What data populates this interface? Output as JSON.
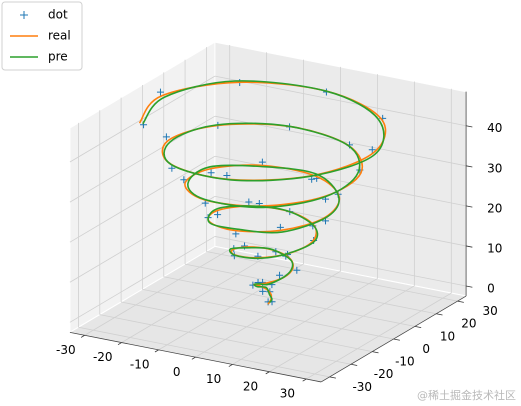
{
  "chart_data": {
    "type": "line3d",
    "legend": "upper left",
    "grid": true,
    "panes": true,
    "xlim": [
      -34,
      34
    ],
    "ylim": [
      -34,
      34
    ],
    "zlim": [
      -2.5,
      48.5
    ],
    "xticks": [
      -30,
      -20,
      -10,
      0,
      10,
      20,
      30
    ],
    "yticks": [
      -30,
      -20,
      -10,
      0,
      10,
      20,
      30
    ],
    "zticks": [
      0,
      10,
      20,
      30,
      40
    ],
    "series": [
      {
        "name": "dot",
        "kind": "scatter",
        "marker": "+",
        "color": "#1f77b4",
        "x": [
          0.8,
          0.2,
          -0.6,
          -1.9,
          -2.1,
          -3.4,
          -0.1,
          2.9,
          4.4,
          5.9,
          1.7,
          -2.1,
          -7.8,
          -7.3,
          -4.9,
          3.1,
          8.1,
          11.6,
          6.3,
          -0.8,
          -10.5,
          -12.9,
          -10.8,
          0.3,
          9.7,
          16.9,
          12.7,
          3.6,
          -10.7,
          -17.6,
          -17.7,
          -5.5,
          8.1,
          20.6,
          19.9,
          10.7,
          -7.5,
          -20.1,
          -24.8,
          -13.5,
          3.3,
          21.7,
          26.5,
          19.5,
          -1.1,
          -19.5,
          -30.5,
          -22.9
        ],
        "y": [
          0.5,
          -0.3,
          1.9,
          0.8,
          1.1,
          -1.2,
          -4.5,
          -3.2,
          -2.2,
          3.3,
          5.4,
          7.3,
          2.5,
          -3.4,
          -7.3,
          -10.1,
          -4.9,
          1.3,
          10.1,
          11.6,
          9.2,
          -1.3,
          -9.4,
          -15.6,
          -11.0,
          -2.3,
          10.9,
          16.6,
          15.9,
          3.8,
          -8.8,
          -19.9,
          -18.1,
          -8.7,
          8.6,
          19.7,
          23.1,
          11.3,
          -4.7,
          -21.7,
          -25.0,
          -17.1,
          3.0,
          20.0,
          29.3,
          20.5,
          2.4,
          -18.7
        ],
        "z": [
          0.6,
          0.7,
          2.4,
          2.6,
          4.7,
          4.5,
          6.8,
          6.4,
          8.7,
          8.5,
          10.6,
          10.4,
          12.3,
          13.6,
          13.5,
          15.7,
          15.4,
          17.6,
          17.5,
          19.3,
          20.7,
          20.4,
          22.6,
          22.5,
          24.4,
          24.6,
          26.3,
          26.8,
          28.5,
          28.4,
          30.6,
          30.5,
          32.3,
          32.7,
          34.4,
          35.5,
          35.6,
          37.4,
          38.7,
          38.3,
          40.6,
          40.5,
          42.4,
          43.6,
          43.5,
          45.3,
          46.6,
          46.5
        ]
      },
      {
        "name": "real",
        "kind": "line",
        "color": "#ff7f0e",
        "x": [
          0,
          0.5,
          0.1,
          -1.2,
          -2.6,
          -2.7,
          -0.8,
          2.3,
          5.0,
          5.2,
          2.3,
          -2.8,
          -7.1,
          -8.0,
          -4.3,
          2.5,
          8.8,
          10.9,
          7.0,
          -1.4,
          -9.9,
          -13.6,
          -10.1,
          -0.4,
          10.3,
          16.2,
          13.4,
          3.0,
          -10.0,
          -18.3,
          -17.0,
          -6.2,
          8.8,
          19.9,
          20.6,
          10.0,
          -6.8,
          -20.8,
          -24.1,
          -14.2,
          4.0,
          21.0,
          27.2,
          18.8,
          -0.4,
          -20.2,
          -29.8,
          -23.6
        ],
        "y": [
          0,
          0.4,
          1.3,
          1.5,
          0.4,
          -1.9,
          -3.8,
          -3.9,
          -1.5,
          2.6,
          6.1,
          6.6,
          3.2,
          -2.7,
          -8.0,
          -9.4,
          -5.6,
          2.0,
          9.4,
          12.3,
          8.5,
          -0.6,
          -10.1,
          -14.9,
          -11.7,
          -1.6,
          10.2,
          17.3,
          15.2,
          4.5,
          -9.5,
          -19.2,
          -18.8,
          -8.0,
          7.9,
          20.4,
          22.4,
          12.0,
          -5.4,
          -21.0,
          -25.7,
          -16.4,
          2.3,
          20.7,
          28.6,
          21.2,
          1.7,
          -19.4
        ],
        "z": [
          0,
          1,
          2,
          3,
          4,
          5,
          6,
          7,
          8,
          9,
          10,
          11,
          12,
          13,
          14,
          15,
          16,
          17,
          18,
          19,
          20,
          21,
          22,
          23,
          24,
          25,
          26,
          27,
          28,
          29,
          30,
          31,
          32,
          33,
          34,
          35,
          36,
          37,
          38,
          39,
          40,
          41,
          42,
          43,
          44,
          45,
          46,
          47
        ]
      },
      {
        "name": "pre",
        "kind": "line",
        "color": "#2ca02c",
        "x": [
          0.3,
          0.7,
          -0.2,
          -1.5,
          -2.9,
          -2.4,
          -0.5,
          2.6,
          5.3,
          4.9,
          2.0,
          -3.1,
          -7.4,
          -8.4,
          -4.0,
          2.9,
          9.2,
          11.3,
          6.6,
          -1.8,
          -10.4,
          -14.0,
          -9.7,
          0.1,
          10.8,
          16.7,
          13.0,
          2.6,
          -10.5,
          -18.9,
          -16.5,
          -5.8,
          9.3,
          20.4,
          20.1,
          9.5,
          -7.3,
          -21.3,
          -23.6,
          -13.8,
          4.6,
          21.5,
          27.9,
          18.2,
          -1.0,
          -20.8,
          -29.2,
          -23.0
        ],
        "y": [
          0.2,
          0.6,
          1.0,
          1.8,
          0.1,
          -2.3,
          -3.5,
          -4.3,
          -1.2,
          2.9,
          6.5,
          6.2,
          2.9,
          -3.1,
          -8.4,
          -9.0,
          -6.0,
          2.4,
          9.9,
          11.8,
          8.9,
          -0.2,
          -10.6,
          -14.5,
          -12.2,
          -1.2,
          10.6,
          17.8,
          14.7,
          4.9,
          -9.0,
          -19.7,
          -18.3,
          -8.5,
          7.4,
          20.9,
          21.9,
          12.5,
          -5.0,
          -21.5,
          -25.2,
          -16.9,
          1.8,
          20.2,
          29.1,
          20.6,
          2.2,
          -18.9
        ],
        "z": [
          0.4,
          1.2,
          2.1,
          3.3,
          3.8,
          5.2,
          6.1,
          6.8,
          8.3,
          9.2,
          9.7,
          11.3,
          11.8,
          13.2,
          14.1,
          14.8,
          16.3,
          17.1,
          17.7,
          19.3,
          19.8,
          21.2,
          21.9,
          23.3,
          23.8,
          25.2,
          25.9,
          27.4,
          27.8,
          29.2,
          29.9,
          31.3,
          31.6,
          33.2,
          34.1,
          34.8,
          36.2,
          36.9,
          37.8,
          39.1,
          39.8,
          41.2,
          41.9,
          43.1,
          43.8,
          45.4,
          45.7,
          46.8
        ]
      }
    ]
  },
  "watermark": "@稀土掘金技术社区"
}
